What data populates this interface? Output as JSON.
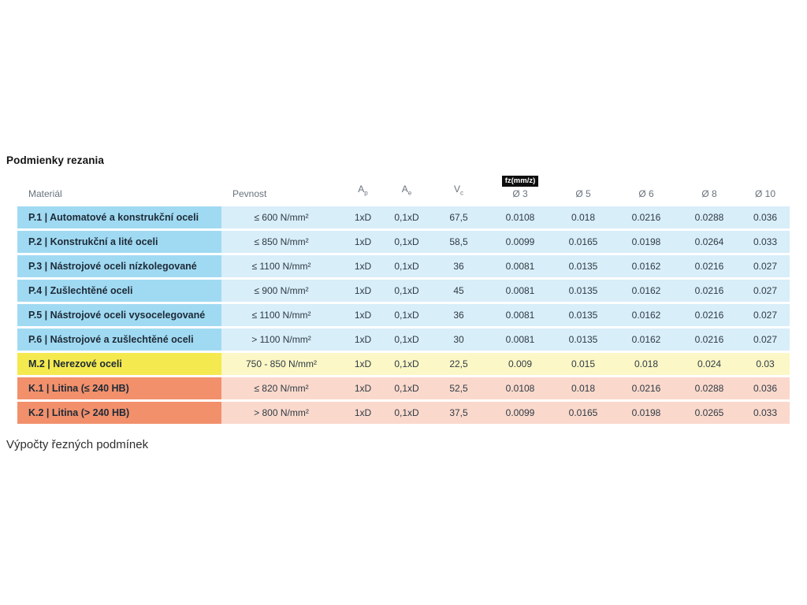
{
  "page": {
    "title": "Podmienky rezania",
    "footer_text": "Výpočty řezných podmínek"
  },
  "table": {
    "headers": {
      "material": "Materiál",
      "pevnost": "Pevnost",
      "ap_base": "A",
      "ap_sub": "p",
      "ae_base": "A",
      "ae_sub": "e",
      "vc_base": "V",
      "vc_sub": "c",
      "fz_badge": "fz(mm/z)",
      "d3": "Ø 3",
      "d5": "Ø 5",
      "d6": "Ø 6",
      "d8": "Ø 8",
      "d10": "Ø 10"
    },
    "rows": [
      {
        "material": "P.1 | Automatové a konstrukční oceli",
        "pevnost": "≤ 600 N/mm²",
        "ap": "1xD",
        "ae": "0,1xD",
        "vc": "67,5",
        "d3": "0.0108",
        "d5": "0.018",
        "d6": "0.0216",
        "d8": "0.0288",
        "d10": "0.036",
        "group": "steel"
      },
      {
        "material": "P.2 | Konstrukční a lité oceli",
        "pevnost": "≤ 850 N/mm²",
        "ap": "1xD",
        "ae": "0,1xD",
        "vc": "58,5",
        "d3": "0.0099",
        "d5": "0.0165",
        "d6": "0.0198",
        "d8": "0.0264",
        "d10": "0.033",
        "group": "steel"
      },
      {
        "material": "P.3 | Nástrojové oceli nízkolegované",
        "pevnost": "≤ 1100 N/mm²",
        "ap": "1xD",
        "ae": "0,1xD",
        "vc": "36",
        "d3": "0.0081",
        "d5": "0.0135",
        "d6": "0.0162",
        "d8": "0.0216",
        "d10": "0.027",
        "group": "steel"
      },
      {
        "material": "P.4 | Zušlechtěné oceli",
        "pevnost": "≤ 900 N/mm²",
        "ap": "1xD",
        "ae": "0,1xD",
        "vc": "45",
        "d3": "0.0081",
        "d5": "0.0135",
        "d6": "0.0162",
        "d8": "0.0216",
        "d10": "0.027",
        "group": "steel"
      },
      {
        "material": "P.5 | Nástrojové oceli vysocelegované",
        "pevnost": "≤ 1100 N/mm²",
        "ap": "1xD",
        "ae": "0,1xD",
        "vc": "36",
        "d3": "0.0081",
        "d5": "0.0135",
        "d6": "0.0162",
        "d8": "0.0216",
        "d10": "0.027",
        "group": "steel"
      },
      {
        "material": "P.6 | Nástrojové a zušlechtěné oceli",
        "pevnost": "> 1100 N/mm²",
        "ap": "1xD",
        "ae": "0,1xD",
        "vc": "30",
        "d3": "0.0081",
        "d5": "0.0135",
        "d6": "0.0162",
        "d8": "0.0216",
        "d10": "0.027",
        "group": "steel"
      },
      {
        "material": "M.2 | Nerezové oceli",
        "pevnost": "750 - 850 N/mm²",
        "ap": "1xD",
        "ae": "0,1xD",
        "vc": "22,5",
        "d3": "0.009",
        "d5": "0.015",
        "d6": "0.018",
        "d8": "0.024",
        "d10": "0.03",
        "group": "stainless"
      },
      {
        "material": "K.1 | Litina (≤ 240 HB)",
        "pevnost": "≤ 820 N/mm²",
        "ap": "1xD",
        "ae": "0,1xD",
        "vc": "52,5",
        "d3": "0.0108",
        "d5": "0.018",
        "d6": "0.0216",
        "d8": "0.0288",
        "d10": "0.036",
        "group": "cast"
      },
      {
        "material": "K.2 | Litina (> 240 HB)",
        "pevnost": "> 800 N/mm²",
        "ap": "1xD",
        "ae": "0,1xD",
        "vc": "37,5",
        "d3": "0.0099",
        "d5": "0.0165",
        "d6": "0.0198",
        "d8": "0.0265",
        "d10": "0.033",
        "group": "cast"
      }
    ]
  },
  "colors": {
    "blue_label": "#A0DAF2",
    "blue_row": "#D8EEF9",
    "yellow_label": "#F4E94E",
    "yellow_row": "#FBF7C6",
    "orange_label": "#F2906C",
    "orange_row": "#FAD9CC",
    "badge_bg": "#0E0E0E",
    "header_text": "#68727C"
  }
}
